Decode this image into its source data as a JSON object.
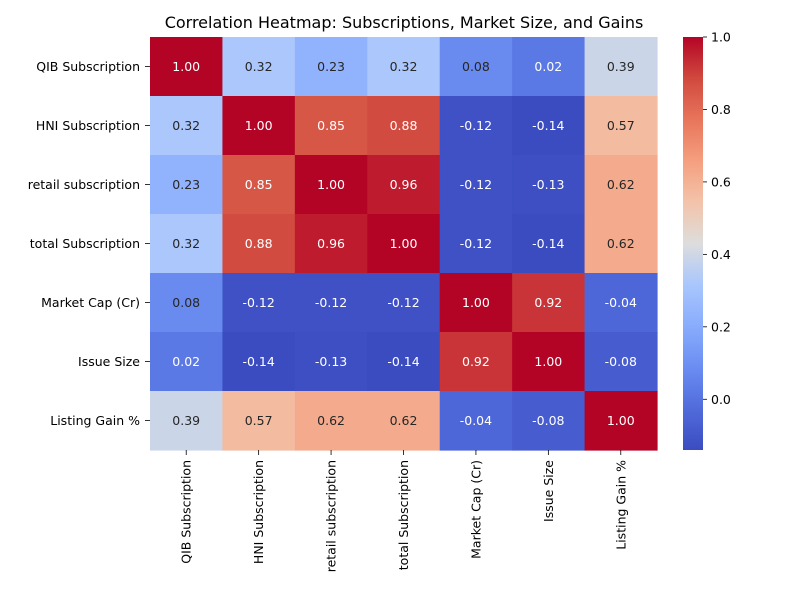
{
  "chart_data": {
    "type": "heatmap",
    "title": "Correlation Heatmap: Subscriptions, Market Size, and Gains",
    "xlabel": "",
    "ylabel": "",
    "rows": [
      "QIB Subscription",
      "HNI Subscription",
      "retail subscription",
      "total Subscription",
      "Market Cap (Cr)",
      "Issue Size",
      "Listing Gain %"
    ],
    "columns": [
      "QIB Subscription",
      "HNI Subscription",
      "retail subscription",
      "total Subscription",
      "Market Cap (Cr)",
      "Issue Size",
      "Listing Gain %"
    ],
    "values": [
      [
        1.0,
        0.32,
        0.23,
        0.32,
        0.08,
        0.02,
        0.39
      ],
      [
        0.32,
        1.0,
        0.85,
        0.88,
        -0.12,
        -0.14,
        0.57
      ],
      [
        0.23,
        0.85,
        1.0,
        0.96,
        -0.12,
        -0.13,
        0.62
      ],
      [
        0.32,
        0.88,
        0.96,
        1.0,
        -0.12,
        -0.14,
        0.62
      ],
      [
        0.08,
        -0.12,
        -0.12,
        -0.12,
        1.0,
        0.92,
        -0.04
      ],
      [
        0.02,
        -0.14,
        -0.13,
        -0.14,
        0.92,
        1.0,
        -0.08
      ],
      [
        0.39,
        0.57,
        0.62,
        0.62,
        -0.04,
        -0.08,
        1.0
      ]
    ],
    "value_format": "0.00",
    "colormap": "coolwarm",
    "color_range": [
      -0.14,
      1.0
    ],
    "colorbar": {
      "ticks": [
        0.0,
        0.2,
        0.4,
        0.6,
        0.8,
        1.0
      ],
      "tick_labels": [
        "0.0",
        "0.2",
        "0.4",
        "0.6",
        "0.8",
        "1.0"
      ],
      "placement": "right"
    },
    "grid": false
  }
}
